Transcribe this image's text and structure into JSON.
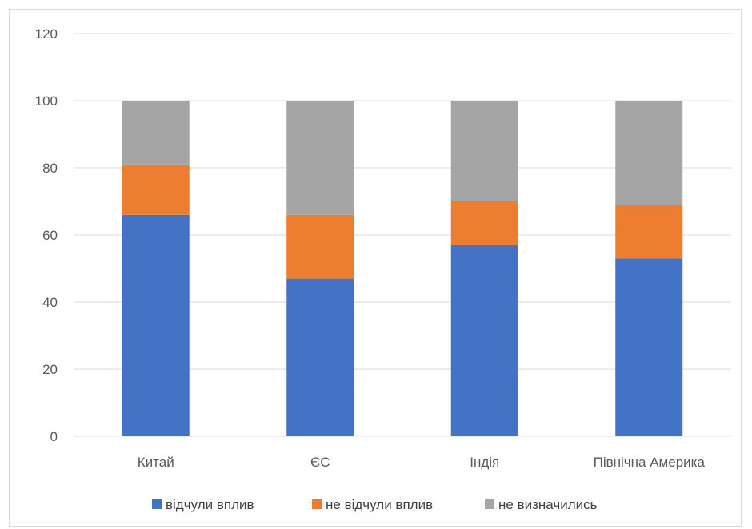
{
  "chart_data": {
    "type": "bar",
    "stacked": true,
    "categories": [
      "Китай",
      "ЄС",
      "Індія",
      "Північна Америка"
    ],
    "series": [
      {
        "name": "відчули вплив",
        "values": [
          66,
          47,
          57,
          53
        ],
        "color": "#4472c4"
      },
      {
        "name": "не відчули вплив",
        "values": [
          15,
          19,
          13,
          16
        ],
        "color": "#ed7d31"
      },
      {
        "name": "не визначились",
        "values": [
          19,
          34,
          30,
          31
        ],
        "color": "#a5a5a5"
      }
    ],
    "title": "",
    "xlabel": "",
    "ylabel": "",
    "ylim": [
      0,
      120
    ],
    "yticks": [
      0,
      20,
      40,
      60,
      80,
      100,
      120
    ],
    "grid": true,
    "legend": "bottom"
  }
}
